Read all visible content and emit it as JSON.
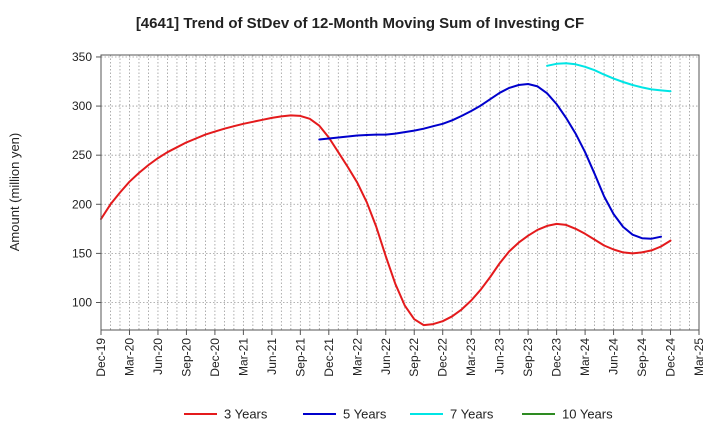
{
  "chart_data": {
    "type": "line",
    "title": "[4641]  Trend of StDev of 12-Month Moving Sum of Investing CF",
    "ylabel": "Amount (million yen)",
    "xlabel": "",
    "ylim": [
      72,
      352
    ],
    "yticks": [
      100,
      150,
      200,
      250,
      300,
      350
    ],
    "x_ticks": [
      "Dec-19",
      "Mar-20",
      "Jun-20",
      "Sep-20",
      "Dec-20",
      "Mar-21",
      "Jun-21",
      "Sep-21",
      "Dec-21",
      "Mar-22",
      "Jun-22",
      "Sep-22",
      "Dec-22",
      "Mar-23",
      "Jun-23",
      "Sep-23",
      "Dec-23",
      "Mar-24",
      "Jun-24",
      "Sep-24",
      "Dec-24",
      "Mar-25"
    ],
    "grid": "dotted, monthly vertical lines",
    "legend_position": "bottom",
    "series": [
      {
        "name": "3 Years",
        "color": "#e41a1c",
        "points": [
          [
            "Dec-19",
            185
          ],
          [
            "Jan-20",
            200
          ],
          [
            "Feb-20",
            212
          ],
          [
            "Mar-20",
            223
          ],
          [
            "Apr-20",
            232
          ],
          [
            "May-20",
            240
          ],
          [
            "Jun-20",
            247
          ],
          [
            "Jul-20",
            253
          ],
          [
            "Aug-20",
            258
          ],
          [
            "Sep-20",
            263
          ],
          [
            "Oct-20",
            267
          ],
          [
            "Nov-20",
            271
          ],
          [
            "Dec-20",
            274
          ],
          [
            "Jan-21",
            277
          ],
          [
            "Feb-21",
            279.5
          ],
          [
            "Mar-21",
            282
          ],
          [
            "Apr-21",
            284
          ],
          [
            "May-21",
            286
          ],
          [
            "Jun-21",
            288
          ],
          [
            "Jul-21",
            289.5
          ],
          [
            "Aug-21",
            290.5
          ],
          [
            "Sep-21",
            290
          ],
          [
            "Oct-21",
            287
          ],
          [
            "Nov-21",
            280
          ],
          [
            "Dec-21",
            268
          ],
          [
            "Jan-22",
            253
          ],
          [
            "Feb-22",
            238
          ],
          [
            "Mar-22",
            222
          ],
          [
            "Apr-22",
            202
          ],
          [
            "May-22",
            177
          ],
          [
            "Jun-22",
            147
          ],
          [
            "Jul-22",
            119
          ],
          [
            "Aug-22",
            97
          ],
          [
            "Sep-22",
            83
          ],
          [
            "Oct-22",
            77
          ],
          [
            "Nov-22",
            78
          ],
          [
            "Dec-22",
            81
          ],
          [
            "Jan-23",
            86
          ],
          [
            "Feb-23",
            93
          ],
          [
            "Mar-23",
            102
          ],
          [
            "Apr-23",
            113
          ],
          [
            "May-23",
            126
          ],
          [
            "Jun-23",
            140
          ],
          [
            "Jul-23",
            152
          ],
          [
            "Aug-23",
            161
          ],
          [
            "Sep-23",
            168
          ],
          [
            "Oct-23",
            174
          ],
          [
            "Nov-23",
            178
          ],
          [
            "Dec-23",
            180
          ],
          [
            "Jan-24",
            179
          ],
          [
            "Feb-24",
            175
          ],
          [
            "Mar-24",
            170
          ],
          [
            "Apr-24",
            164
          ],
          [
            "May-24",
            158
          ],
          [
            "Jun-24",
            154
          ],
          [
            "Jul-24",
            151
          ],
          [
            "Aug-24",
            150
          ],
          [
            "Sep-24",
            151
          ],
          [
            "Oct-24",
            153
          ],
          [
            "Nov-24",
            157
          ],
          [
            "Dec-24",
            163
          ]
        ]
      },
      {
        "name": "5 Years",
        "color": "#0000cc",
        "points": [
          [
            "Nov-21",
            266
          ],
          [
            "Dec-21",
            267
          ],
          [
            "Jan-22",
            268
          ],
          [
            "Feb-22",
            269
          ],
          [
            "Mar-22",
            270
          ],
          [
            "Apr-22",
            270.5
          ],
          [
            "May-22",
            271
          ],
          [
            "Jun-22",
            271
          ],
          [
            "Jul-22",
            272
          ],
          [
            "Aug-22",
            273.5
          ],
          [
            "Sep-22",
            275
          ],
          [
            "Oct-22",
            277
          ],
          [
            "Nov-22",
            279.5
          ],
          [
            "Dec-22",
            282
          ],
          [
            "Jan-23",
            285.5
          ],
          [
            "Feb-23",
            290
          ],
          [
            "Mar-23",
            295
          ],
          [
            "Apr-23",
            300.5
          ],
          [
            "May-23",
            307
          ],
          [
            "Jun-23",
            313.5
          ],
          [
            "Jul-23",
            318.5
          ],
          [
            "Aug-23",
            321.5
          ],
          [
            "Sep-23",
            322.5
          ],
          [
            "Oct-23",
            320
          ],
          [
            "Nov-23",
            313
          ],
          [
            "Dec-23",
            302
          ],
          [
            "Jan-24",
            288
          ],
          [
            "Feb-24",
            272
          ],
          [
            "Mar-24",
            253
          ],
          [
            "Apr-24",
            231
          ],
          [
            "May-24",
            208
          ],
          [
            "Jun-24",
            190
          ],
          [
            "Jul-24",
            177
          ],
          [
            "Aug-24",
            169
          ],
          [
            "Sep-24",
            165.5
          ],
          [
            "Oct-24",
            165
          ],
          [
            "Nov-24",
            167
          ]
        ]
      },
      {
        "name": "7 Years",
        "color": "#00e5e5",
        "points": [
          [
            "Nov-23",
            341
          ],
          [
            "Dec-23",
            343
          ],
          [
            "Jan-24",
            343.5
          ],
          [
            "Feb-24",
            342.5
          ],
          [
            "Mar-24",
            340
          ],
          [
            "Apr-24",
            336.5
          ],
          [
            "May-24",
            332
          ],
          [
            "Jun-24",
            328
          ],
          [
            "Jul-24",
            324.5
          ],
          [
            "Aug-24",
            321.5
          ],
          [
            "Sep-24",
            319
          ],
          [
            "Oct-24",
            317
          ],
          [
            "Nov-24",
            316
          ],
          [
            "Dec-24",
            315
          ]
        ]
      },
      {
        "name": "10 Years",
        "color": "#2e8b22",
        "points": []
      }
    ]
  }
}
